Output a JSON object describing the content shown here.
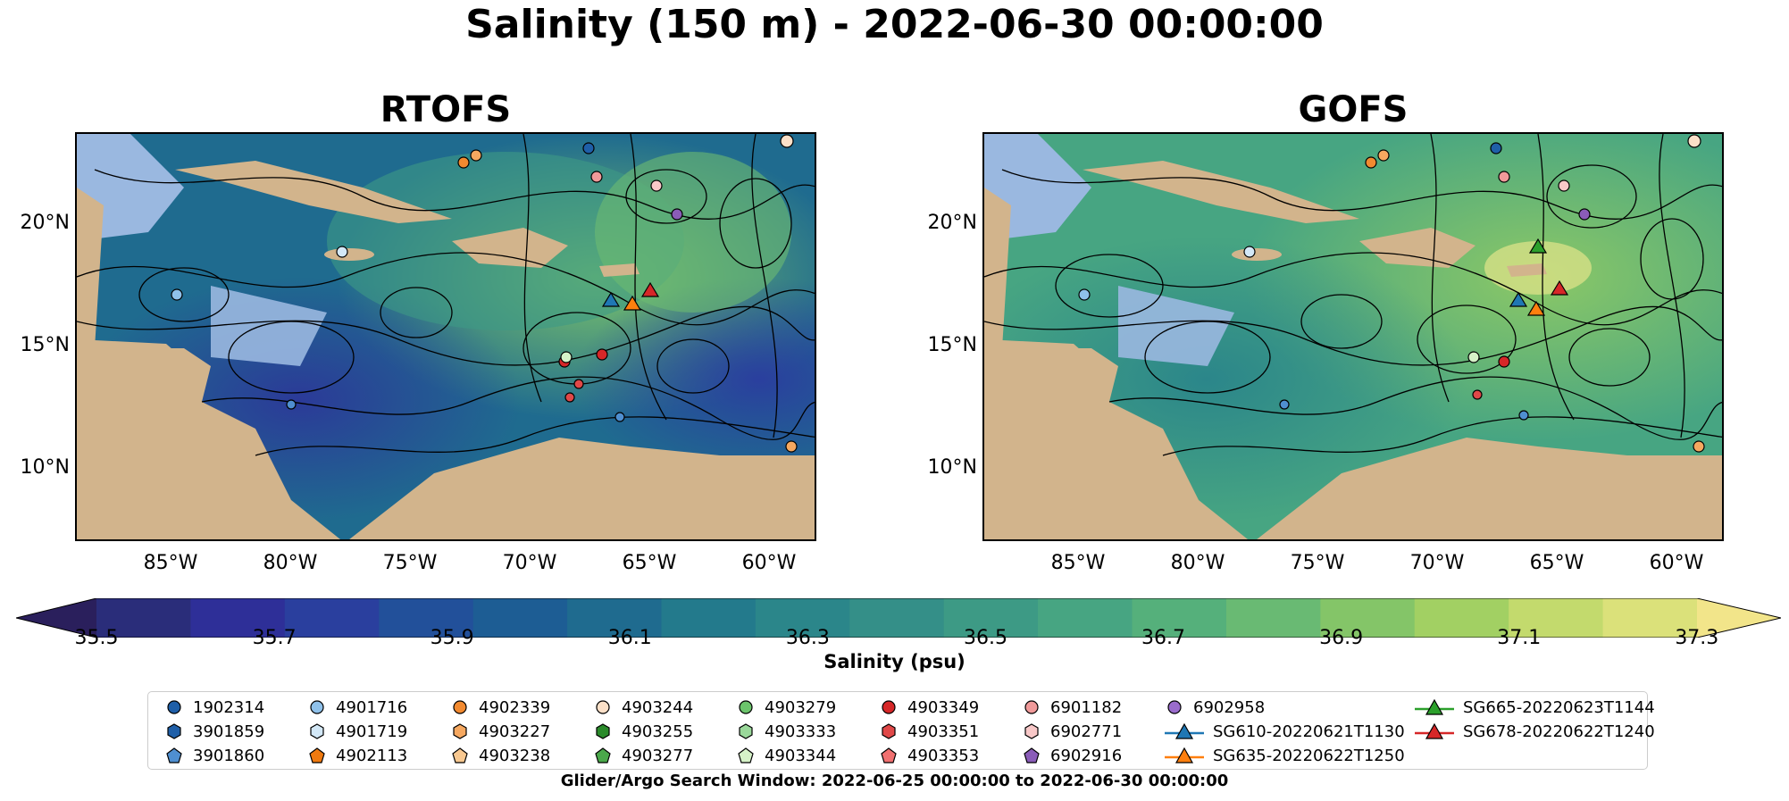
{
  "title": "Salinity (150 m) - 2022-06-30 00:00:00",
  "panels": [
    {
      "title": "RTOFS"
    },
    {
      "title": "GOFS"
    }
  ],
  "lat_ticks": [
    "20°N",
    "15°N",
    "10°N"
  ],
  "lon_ticks": [
    "85°W",
    "80°W",
    "75°W",
    "70°W",
    "65°W",
    "60°W"
  ],
  "colorbar": {
    "label": "Salinity (psu)",
    "ticks": [
      "35.5",
      "35.7",
      "35.9",
      "36.1",
      "36.3",
      "36.5",
      "36.7",
      "36.9",
      "37.1",
      "37.3"
    ],
    "colors": [
      "#2a2d7a",
      "#2e2f98",
      "#2a3f9e",
      "#22509a",
      "#1d5d94",
      "#1f6b8f",
      "#237a8c",
      "#2b868a",
      "#348f88",
      "#3d9a85",
      "#47a582",
      "#55b07b",
      "#69ba73",
      "#84c568",
      "#a2d063",
      "#c3da6d",
      "#dbe17a"
    ],
    "under_color": "#2a1f5c",
    "over_color": "#f2e58a"
  },
  "legend": {
    "items": [
      {
        "label": "1902314",
        "marker": "circle",
        "color": "#1f5fa8"
      },
      {
        "label": "3901859",
        "marker": "hexagon",
        "color": "#1f5fa8"
      },
      {
        "label": "3901860",
        "marker": "pentagon",
        "color": "#4f8fd0"
      },
      {
        "label": "4901716",
        "marker": "circle",
        "color": "#8fc1ea"
      },
      {
        "label": "4901719",
        "marker": "hexagon",
        "color": "#d3e8f7"
      },
      {
        "label": "4902113",
        "marker": "pentagon",
        "color": "#f07a10"
      },
      {
        "label": "4902339",
        "marker": "circle",
        "color": "#f28a30"
      },
      {
        "label": "4903227",
        "marker": "hexagon",
        "color": "#f6a860"
      },
      {
        "label": "4903238",
        "marker": "pentagon",
        "color": "#f8c890"
      },
      {
        "label": "4903244",
        "marker": "circle",
        "color": "#fbe0c8"
      },
      {
        "label": "4903255",
        "marker": "hexagon",
        "color": "#2a8a2a"
      },
      {
        "label": "4903277",
        "marker": "pentagon",
        "color": "#4aa84a"
      },
      {
        "label": "4903279",
        "marker": "circle",
        "color": "#6cc46c"
      },
      {
        "label": "4903333",
        "marker": "hexagon",
        "color": "#9ad89a"
      },
      {
        "label": "4903344",
        "marker": "pentagon",
        "color": "#d6f2c8"
      },
      {
        "label": "4903349",
        "marker": "circle",
        "color": "#d62728"
      },
      {
        "label": "4903351",
        "marker": "hexagon",
        "color": "#e04848"
      },
      {
        "label": "4903353",
        "marker": "pentagon",
        "color": "#f07070"
      },
      {
        "label": "6901182",
        "marker": "circle",
        "color": "#f09a9a"
      },
      {
        "label": "6902771",
        "marker": "hexagon",
        "color": "#f8c8c8"
      },
      {
        "label": "6902916",
        "marker": "pentagon",
        "color": "#8a5cb8"
      },
      {
        "label": "6902958",
        "marker": "circle",
        "color": "#9a6ccc"
      },
      {
        "label": "SG610-20220621T1130",
        "marker": "triangle-line",
        "color": "#1f77b4"
      },
      {
        "label": "SG635-20220622T1250",
        "marker": "triangle-line",
        "color": "#ff7f0e"
      },
      {
        "label": "SG665-20220623T1144",
        "marker": "triangle-line",
        "color": "#2ca02c"
      },
      {
        "label": "SG678-20220622T1240",
        "marker": "triangle-line",
        "color": "#d62728"
      }
    ]
  },
  "search_window": "Glider/Argo Search Window: 2022-06-25 00:00:00 to 2022-06-30 00:00:00",
  "colors": {
    "land": "#d2b48c",
    "shelf": "#9ab8e0",
    "pacific": "#2a1f6a"
  }
}
